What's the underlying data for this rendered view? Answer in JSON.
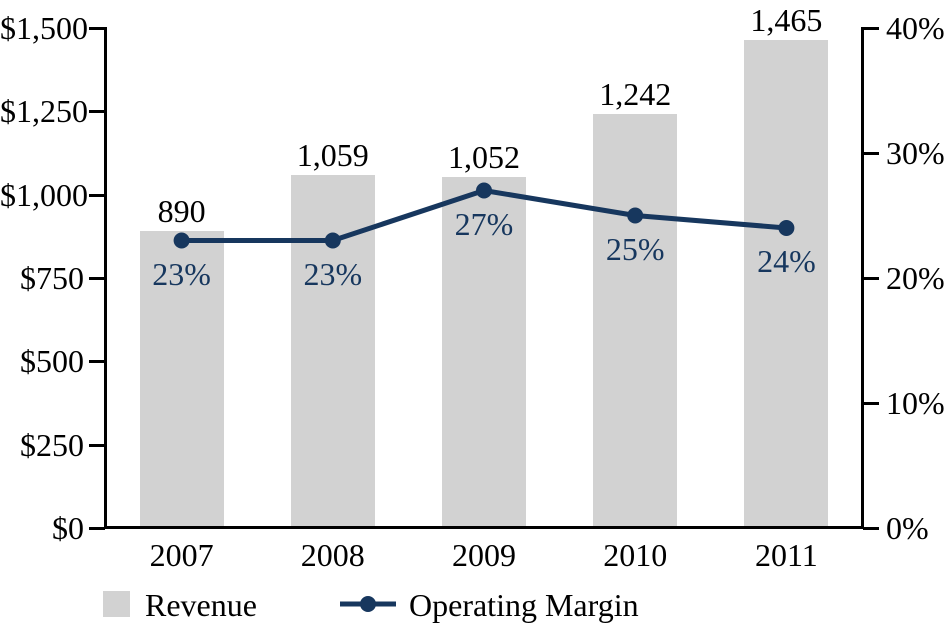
{
  "chart_data": {
    "type": "combo-bar-line",
    "categories": [
      "2007",
      "2008",
      "2009",
      "2010",
      "2011"
    ],
    "series": [
      {
        "name": "Revenue",
        "type": "bar",
        "axis": "left",
        "values": [
          890,
          1059,
          1052,
          1242,
          1465
        ],
        "value_labels": [
          "890",
          "1,059",
          "1,052",
          "1,242",
          "1,465"
        ]
      },
      {
        "name": "Operating Margin",
        "type": "line",
        "axis": "right",
        "values": [
          23,
          23,
          27,
          25,
          24
        ],
        "value_labels": [
          "23%",
          "23%",
          "27%",
          "25%",
          "24%"
        ]
      }
    ],
    "left_axis": {
      "min": 0,
      "max": 1500,
      "tick_values": [
        1500,
        1250,
        1000,
        750,
        500,
        250,
        0
      ],
      "tick_labels": [
        "$1,500",
        "$1,250",
        "$1,000",
        "$750",
        "$500",
        "$250",
        "$0"
      ]
    },
    "right_axis": {
      "min": 0,
      "max": 40,
      "tick_values": [
        40,
        30,
        20,
        10,
        0
      ],
      "tick_labels": [
        "40%",
        "30%",
        "20%",
        "10%",
        "0%"
      ]
    },
    "legend": {
      "position": "bottom",
      "items": [
        "Revenue",
        "Operating Margin"
      ]
    },
    "grid": false,
    "colors": {
      "bar": "#D2D2D2",
      "line": "#17375E",
      "point": "#17375E",
      "margin_label": "#17375E",
      "value_label": "#000000",
      "axis": "#000000"
    }
  }
}
